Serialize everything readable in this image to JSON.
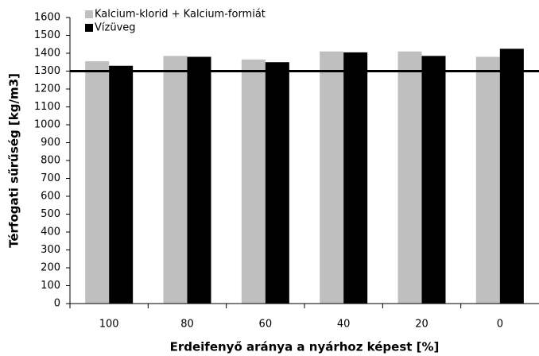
{
  "chart_data": {
    "type": "bar",
    "categories": [
      "100",
      "80",
      "60",
      "40",
      "20",
      "0"
    ],
    "series": [
      {
        "name": "Kalcium-klorid + Kalcium-formiát",
        "color": "#bfbfbf",
        "values": [
          1355,
          1385,
          1365,
          1410,
          1410,
          1380
        ]
      },
      {
        "name": "Vízüveg",
        "color": "#000000",
        "values": [
          1330,
          1380,
          1350,
          1405,
          1385,
          1425
        ]
      }
    ],
    "reference_line": 1300,
    "ylim": [
      0,
      1600
    ],
    "yticks": [
      0,
      100,
      200,
      300,
      400,
      500,
      600,
      700,
      800,
      900,
      1000,
      1100,
      1200,
      1300,
      1400,
      1500,
      1600
    ],
    "xlabel": "Erdeifenyő aránya a nyárhoz képest [%]",
    "ylabel": "Térfogati sűrűség [kg/m3]",
    "legend": "upper left"
  }
}
